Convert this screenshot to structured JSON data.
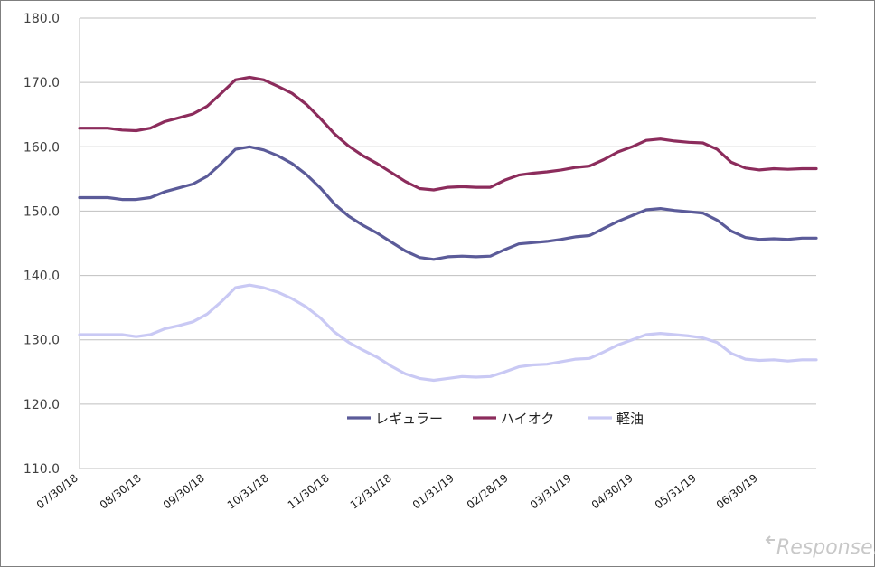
{
  "chart_data": {
    "type": "line",
    "ylim": [
      110,
      180
    ],
    "yticks": [
      "110.0",
      "120.0",
      "130.0",
      "140.0",
      "150.0",
      "160.0",
      "170.0",
      "180.0"
    ],
    "x_tick_labels": [
      "07/30/18",
      "08/30/18",
      "09/30/18",
      "10/31/18",
      "11/30/18",
      "12/31/18",
      "01/31/19",
      "02/28/19",
      "03/31/19",
      "04/30/19",
      "05/31/19",
      "06/30/19"
    ],
    "grid": true,
    "legend_position": "bottom-center",
    "series": [
      {
        "name": "レギュラー",
        "color": "#5b5b99",
        "values": [
          152.1,
          152.1,
          152.1,
          151.8,
          151.8,
          152.1,
          153.0,
          153.6,
          154.2,
          155.4,
          157.4,
          159.6,
          160.0,
          159.5,
          158.6,
          157.4,
          155.7,
          153.6,
          151.1,
          149.2,
          147.8,
          146.6,
          145.2,
          143.8,
          142.8,
          142.5,
          142.9,
          143.0,
          142.9,
          143.0,
          144.0,
          144.9,
          145.1,
          145.3,
          145.6,
          146.0,
          146.2,
          147.3,
          148.4,
          149.3,
          150.2,
          150.4,
          150.1,
          149.9,
          149.7,
          148.6,
          146.9,
          145.9,
          145.6,
          145.7,
          145.6,
          145.8,
          145.8
        ]
      },
      {
        "name": "ハイオク",
        "color": "#8c2c5c",
        "values": [
          162.9,
          162.9,
          162.9,
          162.6,
          162.5,
          162.9,
          163.9,
          164.5,
          165.1,
          166.3,
          168.3,
          170.4,
          170.8,
          170.4,
          169.4,
          168.3,
          166.6,
          164.4,
          162.0,
          160.1,
          158.6,
          157.4,
          156.0,
          154.6,
          153.5,
          153.3,
          153.7,
          153.8,
          153.7,
          153.7,
          154.8,
          155.6,
          155.9,
          156.1,
          156.4,
          156.8,
          157.0,
          158.0,
          159.2,
          160.0,
          161.0,
          161.2,
          160.9,
          160.7,
          160.6,
          159.6,
          157.6,
          156.7,
          156.4,
          156.6,
          156.5,
          156.6,
          156.6
        ]
      },
      {
        "name": "軽油",
        "color": "#c9c9f4",
        "values": [
          130.8,
          130.8,
          130.8,
          130.8,
          130.5,
          130.8,
          131.7,
          132.2,
          132.8,
          134.0,
          135.9,
          138.1,
          138.5,
          138.1,
          137.4,
          136.4,
          135.1,
          133.4,
          131.2,
          129.6,
          128.4,
          127.3,
          125.9,
          124.7,
          124.0,
          123.7,
          124.0,
          124.3,
          124.2,
          124.3,
          125.0,
          125.8,
          126.1,
          126.2,
          126.6,
          127.0,
          127.1,
          128.1,
          129.2,
          130.0,
          130.8,
          131.0,
          130.8,
          130.6,
          130.3,
          129.6,
          127.9,
          127.0,
          126.8,
          126.9,
          126.7,
          126.9,
          126.9
        ]
      }
    ]
  },
  "branding": {
    "watermark": "Response."
  }
}
